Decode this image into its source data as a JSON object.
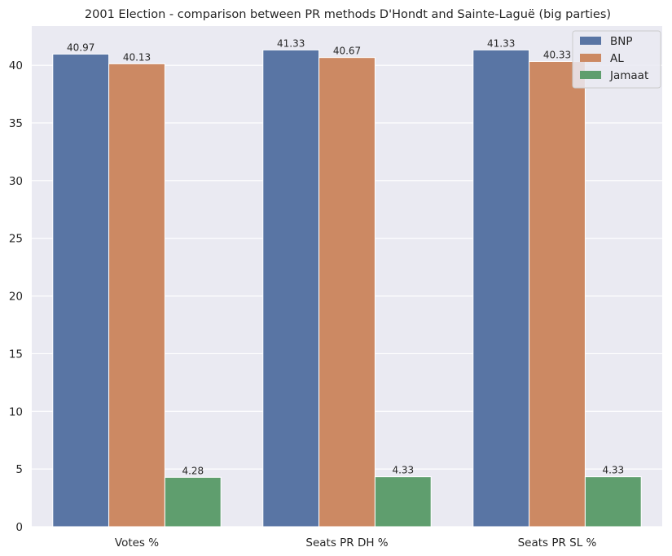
{
  "chart_data": {
    "type": "bar",
    "title": "2001 Election - comparison between PR methods D'Hondt and Sainte-Laguë (big parties)",
    "xlabel": "",
    "ylabel": "",
    "categories": [
      "Votes %",
      "Seats PR DH %",
      "Seats PR SL %"
    ],
    "series": [
      {
        "name": "BNP",
        "values": [
          40.97,
          41.33,
          41.33
        ],
        "labels": [
          "40.97",
          "41.33",
          "41.33"
        ],
        "color": "#5975a4"
      },
      {
        "name": "AL",
        "values": [
          40.13,
          40.67,
          40.33
        ],
        "labels": [
          "40.13",
          "40.67",
          "40.33"
        ],
        "color": "#cc8963"
      },
      {
        "name": "Jamaat",
        "values": [
          4.28,
          4.33,
          4.33
        ],
        "labels": [
          "4.28",
          "4.33",
          "4.33"
        ],
        "color": "#5f9e6e"
      }
    ],
    "ylim": [
      0,
      43.4
    ],
    "yticks": [
      0,
      5,
      10,
      15,
      20,
      25,
      30,
      35,
      40
    ],
    "ytick_labels": [
      "0",
      "5",
      "10",
      "15",
      "20",
      "25",
      "30",
      "35",
      "40"
    ],
    "grid": true,
    "legend_position": "top-right",
    "background": "#eaeaf2"
  }
}
